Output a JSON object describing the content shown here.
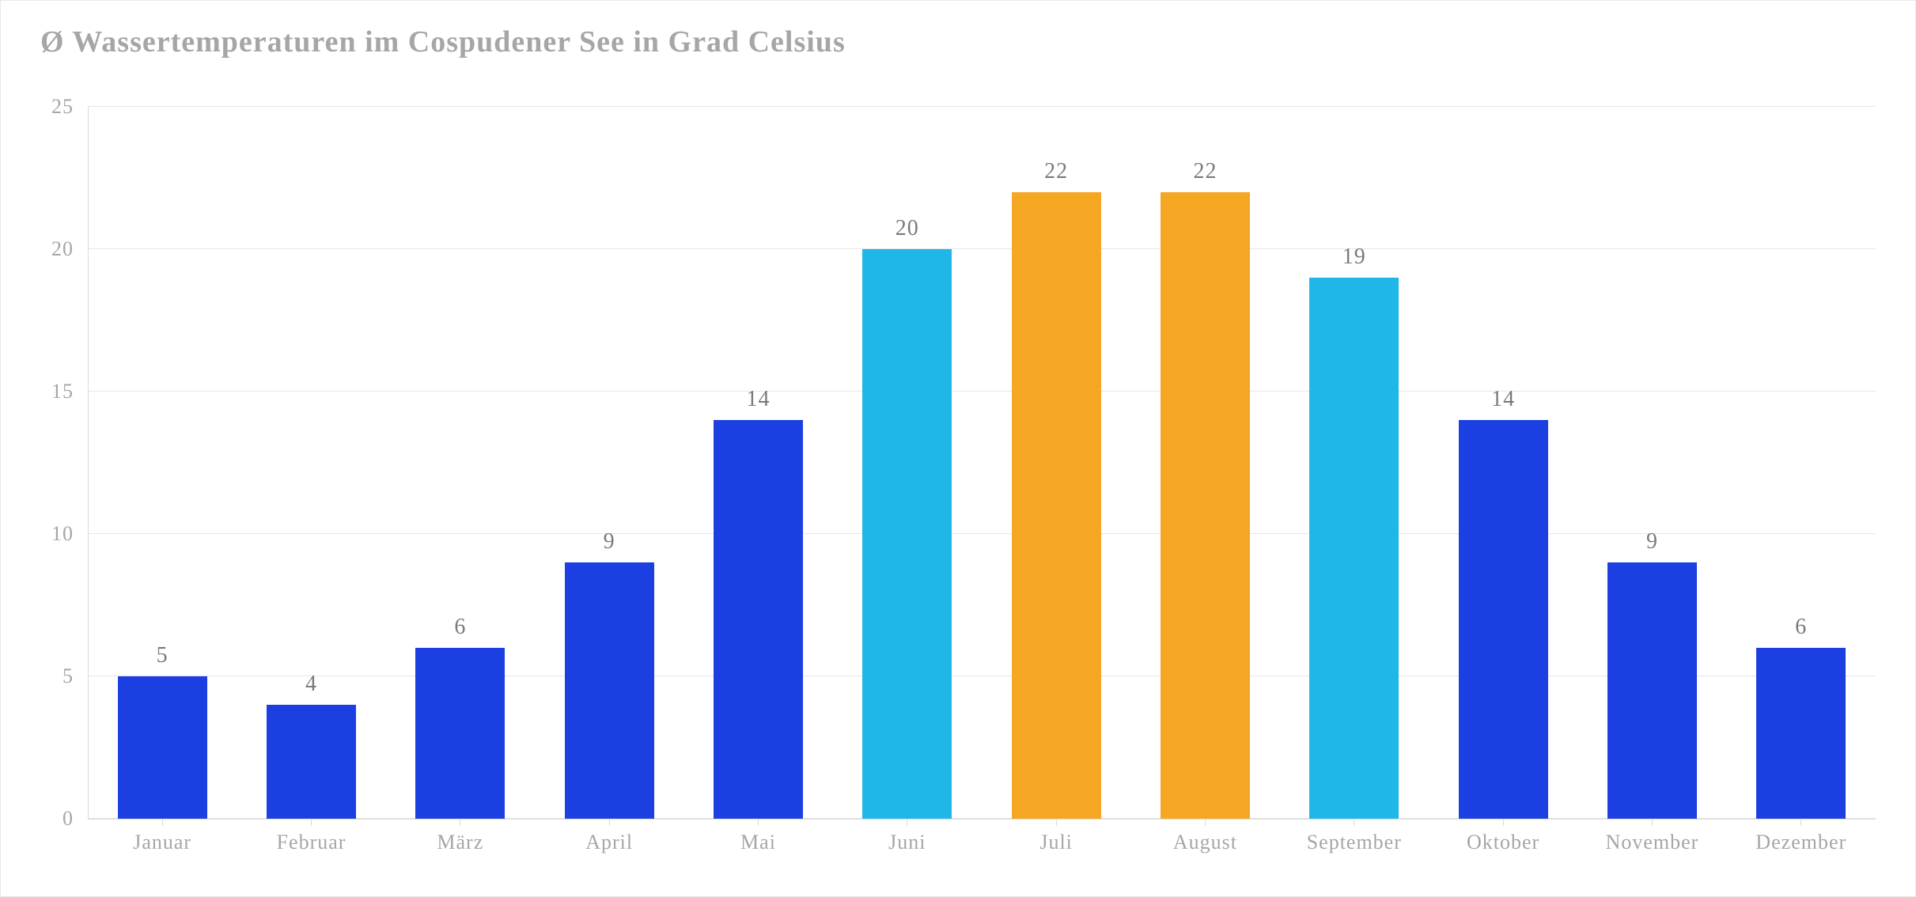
{
  "chart": {
    "type": "bar",
    "title": "Ø Wassertemperaturen im Cospudener See in Grad Celsius",
    "title_color": "#a6a6a6",
    "title_fontsize": 38,
    "background_color": "#ffffff",
    "grid_color": "#e6e6e6",
    "axis_color": "#d9d9d9",
    "label_color": "#a6a6a6",
    "value_label_color": "#7a7a7a",
    "font_family": "Georgia, serif",
    "axis_label_fontsize": 26,
    "value_label_fontsize": 28,
    "ylim": [
      0,
      25
    ],
    "ytick_step": 5,
    "yticks": [
      0,
      5,
      10,
      15,
      20,
      25
    ],
    "bar_width": 0.6,
    "categories": [
      "Januar",
      "Februar",
      "März",
      "April",
      "Mai",
      "Juni",
      "Juli",
      "August",
      "September",
      "Oktober",
      "November",
      "Dezember"
    ],
    "values": [
      5,
      4,
      6,
      9,
      14,
      20,
      22,
      22,
      19,
      14,
      9,
      6
    ],
    "bar_colors": [
      "#1b3fe0",
      "#1b3fe0",
      "#1b3fe0",
      "#1b3fe0",
      "#1b3fe0",
      "#1fb6e8",
      "#f5a623",
      "#f5a623",
      "#1fb6e8",
      "#1b3fe0",
      "#1b3fe0",
      "#1b3fe0"
    ]
  }
}
